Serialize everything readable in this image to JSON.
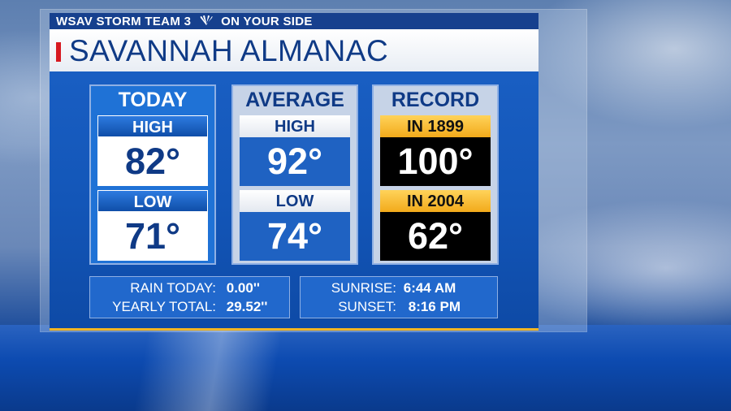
{
  "header": {
    "station": "WSAV STORM TEAM 3",
    "tagline": "ON YOUR SIDE",
    "logo_icon": "peacock-icon"
  },
  "title": "SAVANNAH ALMANAC",
  "colors": {
    "accent_red": "#d71920",
    "brand_blue": "#0f3a86",
    "record_gold": "#f2aa1b"
  },
  "panels": {
    "today": {
      "heading": "TODAY",
      "high_label": "HIGH",
      "high_value": "82°",
      "low_label": "LOW",
      "low_value": "71°"
    },
    "average": {
      "heading": "AVERAGE",
      "high_label": "HIGH",
      "high_value": "92°",
      "low_label": "LOW",
      "low_value": "74°"
    },
    "record": {
      "heading": "RECORD",
      "high_label": "IN 1899",
      "high_value": "100°",
      "low_label": "IN 2004",
      "low_value": "62°"
    }
  },
  "rain": {
    "today_label": "RAIN TODAY:",
    "today_value": "0.00''",
    "yearly_label": "YEARLY TOTAL:",
    "yearly_value": "29.52''"
  },
  "sun": {
    "sunrise_label": "SUNRISE:",
    "sunrise_value": "6:44 AM",
    "sunset_label": "SUNSET:",
    "sunset_value": "8:16 PM"
  }
}
